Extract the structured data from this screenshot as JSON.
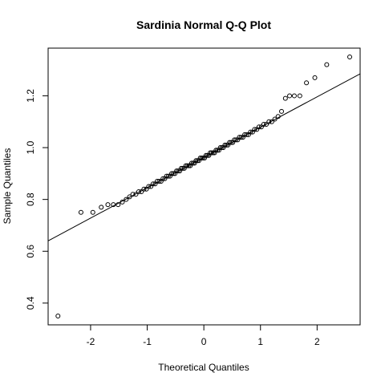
{
  "chart_data": {
    "type": "qq",
    "title": "Sardinia Normal Q-Q Plot",
    "x_label": "Theoretical Quantiles",
    "y_label": "Sample Quantiles",
    "xlim": [
      -2.75,
      2.76
    ],
    "ylim": [
      0.316,
      1.384
    ],
    "xticks": [
      -2,
      -1,
      0,
      1,
      2
    ],
    "yticks": [
      0.4,
      0.6,
      0.8,
      {
        "value": 1,
        "label": "1.0"
      },
      1.2
    ],
    "qqline": {
      "intercept": 0.962,
      "slope": 0.117
    },
    "color": "#000000",
    "x": [
      -2.576,
      -2.17,
      -1.96,
      -1.812,
      -1.695,
      -1.598,
      -1.514,
      -1.44,
      -1.372,
      -1.311,
      -1.254,
      -1.2,
      -1.15,
      -1.103,
      -1.058,
      -1.015,
      -0.974,
      -0.935,
      -0.896,
      -0.86,
      -0.824,
      -0.789,
      -0.755,
      -0.722,
      -0.69,
      -0.659,
      -0.628,
      -0.598,
      -0.568,
      -0.539,
      -0.51,
      -0.482,
      -0.454,
      -0.426,
      -0.399,
      -0.372,
      -0.345,
      -0.319,
      -0.292,
      -0.266,
      -0.24,
      -0.215,
      -0.189,
      -0.164,
      -0.138,
      -0.113,
      -0.088,
      -0.063,
      -0.038,
      -0.013,
      0.013,
      0.038,
      0.063,
      0.088,
      0.113,
      0.138,
      0.164,
      0.189,
      0.215,
      0.24,
      0.266,
      0.292,
      0.319,
      0.345,
      0.372,
      0.399,
      0.426,
      0.454,
      0.482,
      0.51,
      0.539,
      0.568,
      0.598,
      0.628,
      0.659,
      0.69,
      0.722,
      0.755,
      0.789,
      0.824,
      0.86,
      0.896,
      0.935,
      0.974,
      1.015,
      1.058,
      1.103,
      1.15,
      1.2,
      1.254,
      1.311,
      1.372,
      1.44,
      1.514,
      1.598,
      1.695,
      1.812,
      1.96,
      2.17,
      2.576
    ],
    "values": [
      0.35,
      0.75,
      0.75,
      0.77,
      0.78,
      0.78,
      0.78,
      0.79,
      0.8,
      0.81,
      0.82,
      0.82,
      0.83,
      0.83,
      0.84,
      0.84,
      0.85,
      0.85,
      0.86,
      0.86,
      0.87,
      0.87,
      0.87,
      0.88,
      0.88,
      0.89,
      0.89,
      0.89,
      0.9,
      0.9,
      0.9,
      0.91,
      0.91,
      0.91,
      0.92,
      0.92,
      0.92,
      0.93,
      0.93,
      0.93,
      0.93,
      0.94,
      0.94,
      0.94,
      0.95,
      0.95,
      0.95,
      0.96,
      0.96,
      0.96,
      0.96,
      0.97,
      0.97,
      0.97,
      0.98,
      0.98,
      0.98,
      0.98,
      0.99,
      0.99,
      0.99,
      1.0,
      1.0,
      1.0,
      1.01,
      1.01,
      1.01,
      1.02,
      1.02,
      1.02,
      1.03,
      1.03,
      1.03,
      1.04,
      1.04,
      1.04,
      1.05,
      1.05,
      1.05,
      1.06,
      1.06,
      1.07,
      1.07,
      1.08,
      1.08,
      1.09,
      1.09,
      1.1,
      1.1,
      1.11,
      1.12,
      1.14,
      1.19,
      1.2,
      1.2,
      1.2,
      1.25,
      1.27,
      1.32,
      1.35
    ]
  }
}
